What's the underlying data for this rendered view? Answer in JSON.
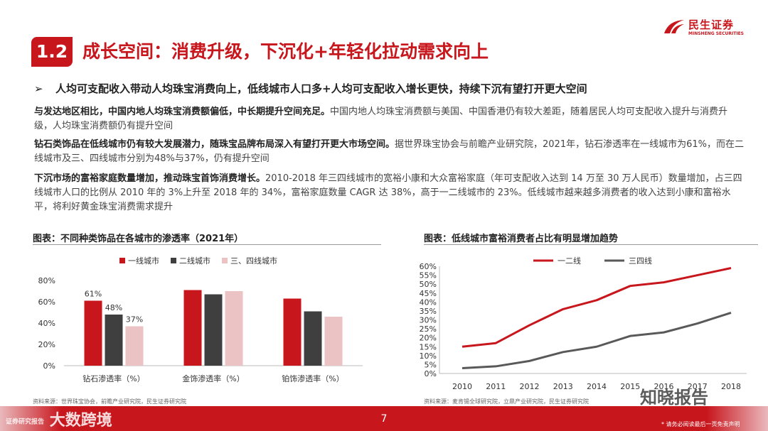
{
  "header": {
    "section_number": "1.2",
    "title": "成长空间：消费升级，下沉化+年轻化拉动需求向上",
    "logo_cn": "民生证券",
    "logo_en": "MINSHENG SECURITIES",
    "brand_color": "#c8161d"
  },
  "bullet": {
    "icon": "➢",
    "text": "人均可支配收入带动人均珠宝消费向上，低线城市人口多+人均可支配收入增长更快，持续下沉有望打开更大空间"
  },
  "paragraphs": [
    {
      "bold": "与发达地区相比，中国内地人均珠宝消费额偏低，中长期提升空间充足。",
      "text": "中国内地人均珠宝消费额与美国、中国香港仍有较大差距，随着居民人均可支配收入提升与消费升级，人均珠宝消费额仍有提升空间"
    },
    {
      "bold": "钻石类饰品在低线城市仍有较大发展潜力，随珠宝品牌布局深入有望打开更大市场空间。",
      "text": "据世界珠宝协会与前瞻产业研究院，2021年，钻石渗透率在一线城市为61%，而在二线城市及三、四线城市分别为48%与37%，仍有提升空间"
    },
    {
      "bold": "下沉市场的富裕家庭数量增加，推动珠宝首饰消费增长。",
      "text": "2010-2018 年三四线城市的宽裕小康和大众富裕家庭（年可支配收入达到 14 万至 30 万人民币）数量增加，占三四线城市人口的比例从 2010 年的 3%上升至 2018 年的 34%，富裕家庭数量 CAGR 达 38%，高于一二线城市的 23%。低线城市越来越多消费者的收入达到小康和富裕水平，将利好黄金珠宝消费需求提升"
    }
  ],
  "chart_left": {
    "caption": "图表：不同种类饰品在各城市的渗透率（2021年）",
    "source": "资料来源：世界珠宝协会，前瞻产业研究院，民生证券研究院"
  },
  "chart_right": {
    "caption": "图表：低线城市富裕消费者占比有明显增加趋势",
    "source": "资料来源：麦肯锡全球研究院，立鼎产业研究院，民生证券研究院"
  },
  "footer": {
    "page": "7",
    "watermark_left": "大数跨境",
    "watermark_left_small": "证券研究报告",
    "watermark_right": "知晓报告",
    "disclaimer": "* 请务必阅读最后一页免责声明"
  },
  "chart_data": [
    {
      "type": "bar",
      "categories": [
        "钻石渗透率（%）",
        "金饰渗透率（%）",
        "铂饰渗透率（%）"
      ],
      "series": [
        {
          "name": "一线城市",
          "color": "#c8161d",
          "values": [
            61,
            71,
            63
          ],
          "labels": [
            "61%",
            "",
            ""
          ]
        },
        {
          "name": "二线城市",
          "color": "#3f3f3f",
          "values": [
            48,
            67,
            51
          ],
          "labels": [
            "48%",
            "",
            ""
          ]
        },
        {
          "name": "三、四线城市",
          "color": "#ecc3c4",
          "values": [
            37,
            70,
            46
          ],
          "labels": [
            "37%",
            "",
            ""
          ]
        }
      ],
      "ylim": [
        0,
        80
      ],
      "yticks": [
        "0%",
        "20%",
        "40%",
        "60%",
        "80%"
      ],
      "legend": "top"
    },
    {
      "type": "line",
      "x": [
        "2010",
        "2011",
        "2012",
        "2013",
        "2014",
        "2015",
        "2016",
        "2017",
        "2018"
      ],
      "series": [
        {
          "name": "一二线",
          "color": "#c8161d",
          "values": [
            15,
            17,
            27,
            36,
            41,
            49,
            51,
            55,
            59
          ]
        },
        {
          "name": "三四线",
          "color": "#595959",
          "values": [
            3,
            4,
            7,
            12,
            15,
            21,
            23,
            28,
            34
          ]
        }
      ],
      "ylim": [
        0,
        60
      ],
      "yticks": [
        "0%",
        "5%",
        "10%",
        "15%",
        "20%",
        "25%",
        "30%",
        "35%",
        "40%",
        "45%",
        "50%",
        "55%",
        "60%"
      ],
      "legend": "top"
    }
  ]
}
